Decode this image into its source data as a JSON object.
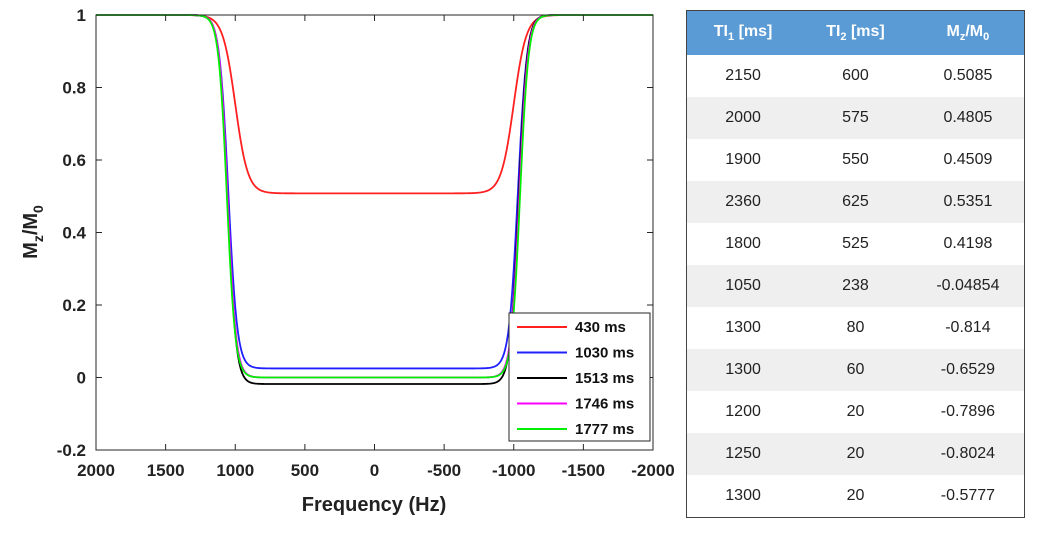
{
  "chart_data": {
    "type": "line",
    "xlabel": "Frequency (Hz)",
    "ylabel": "Mz/M0",
    "xlim": [
      2000,
      -2000
    ],
    "ylim": [
      -0.2,
      1
    ],
    "xticks": [
      "2000",
      "1500",
      "1000",
      "500",
      "0",
      "-500",
      "-1000",
      "-1500",
      "-2000"
    ],
    "yticks": [
      "-0.2",
      "0",
      "0.2",
      "0.4",
      "0.6",
      "0.8",
      "1"
    ],
    "grid": false,
    "legend_position": "bottom-right",
    "series": [
      {
        "name": "430 ms",
        "color": "#ff2020",
        "plateau": 0.508,
        "left_edge": 1000,
        "right_edge": -1000,
        "width": 45
      },
      {
        "name": "1030 ms",
        "color": "#2020ff",
        "plateau": 0.025,
        "left_edge": 1050,
        "right_edge": -1030,
        "width": 32
      },
      {
        "name": "1513 ms",
        "color": "#000000",
        "plateau": -0.018,
        "left_edge": 1055,
        "right_edge": -1035,
        "width": 30
      },
      {
        "name": "1746 ms",
        "color": "#ff00ff",
        "plateau": 0.0,
        "left_edge": 1055,
        "right_edge": -1040,
        "width": 30
      },
      {
        "name": "1777 ms",
        "color": "#00ee00",
        "plateau": 0.0,
        "left_edge": 1060,
        "right_edge": -1045,
        "width": 30
      }
    ]
  },
  "table": {
    "headers": [
      {
        "base": "TI",
        "sub": "1",
        "suffix": " [ms]"
      },
      {
        "base": "TI",
        "sub": "2",
        "suffix": " [ms]"
      },
      {
        "base": "M",
        "sub": "z",
        "mid": "/M",
        "sub2": "0"
      }
    ],
    "rows": [
      [
        "2150",
        "600",
        "0.5085"
      ],
      [
        "2000",
        "575",
        "0.4805"
      ],
      [
        "1900",
        "550",
        "0.4509"
      ],
      [
        "2360",
        "625",
        "0.5351"
      ],
      [
        "1800",
        "525",
        "0.4198"
      ],
      [
        "1050",
        "238",
        "-0.04854"
      ],
      [
        "1300",
        "80",
        "-0.814"
      ],
      [
        "1300",
        "60",
        "-0.6529"
      ],
      [
        "1200",
        "20",
        "-0.7896"
      ],
      [
        "1250",
        "20",
        "-0.8024"
      ],
      [
        "1300",
        "20",
        "-0.5777"
      ]
    ]
  }
}
